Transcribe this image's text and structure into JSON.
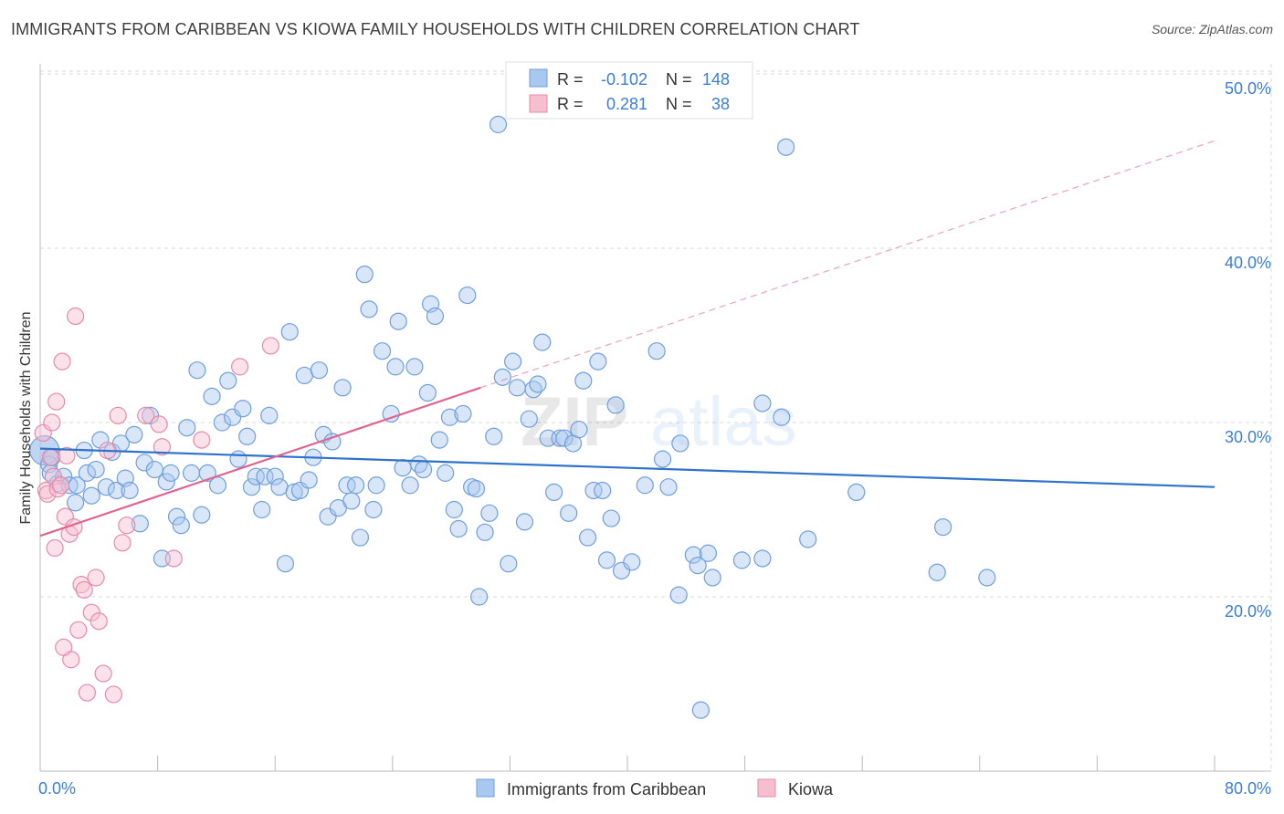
{
  "title": "IMMIGRANTS FROM CARIBBEAN VS KIOWA FAMILY HOUSEHOLDS WITH CHILDREN CORRELATION CHART",
  "source": "Source: ZipAtlas.com",
  "watermark": {
    "zip": "ZIP",
    "atlas": "atlas"
  },
  "colors": {
    "blue_fill": "#a9c8ef",
    "blue_stroke": "#6f9fdb",
    "blue_line": "#2f72cc",
    "pink_fill": "#f6bfd0",
    "pink_stroke": "#e58aa8",
    "pink_line": "#e0648f",
    "label_blue": "#3b7dd8",
    "grid": "#d8d8d8"
  },
  "chart_data": {
    "type": "scatter",
    "xlabel": "",
    "ylabel": "Family Households with Children",
    "xlim": [
      0,
      80
    ],
    "ylim": [
      10,
      51.5
    ],
    "x_tick_labels": [
      "0.0%",
      "80.0%"
    ],
    "y_ticks": [
      20,
      30,
      40,
      50
    ],
    "y_tick_labels": [
      "20.0%",
      "30.0%",
      "40.0%",
      "50.0%"
    ],
    "legend_position": "top-center",
    "stats": [
      {
        "r_label": "R = ",
        "r_value": "-0.102",
        "n_label": "N = ",
        "n_value": "148"
      },
      {
        "r_label": "R = ",
        "r_value": "0.281",
        "n_label": "N = ",
        "n_value": "38"
      }
    ],
    "series": [
      {
        "name": "Immigrants from Caribbean",
        "color": "#a9c8ef",
        "trend": {
          "x": [
            0,
            80
          ],
          "y": [
            28.5,
            26.3
          ]
        },
        "points": [
          [
            0.3,
            28.4
          ],
          [
            0.6,
            27.6
          ],
          [
            0.7,
            27.1
          ],
          [
            0.8,
            28.0
          ],
          [
            1.2,
            26.5
          ],
          [
            1.6,
            26.9
          ],
          [
            2.0,
            26.4
          ],
          [
            2.4,
            25.4
          ],
          [
            2.5,
            26.4
          ],
          [
            3.0,
            28.4
          ],
          [
            3.2,
            27.1
          ],
          [
            3.5,
            25.8
          ],
          [
            3.8,
            27.3
          ],
          [
            4.1,
            29.0
          ],
          [
            4.5,
            26.3
          ],
          [
            4.9,
            28.3
          ],
          [
            5.2,
            26.1
          ],
          [
            5.5,
            28.8
          ],
          [
            5.8,
            26.8
          ],
          [
            6.1,
            26.1
          ],
          [
            6.4,
            29.3
          ],
          [
            6.8,
            24.2
          ],
          [
            7.1,
            27.7
          ],
          [
            7.5,
            30.4
          ],
          [
            7.8,
            27.3
          ],
          [
            8.3,
            22.2
          ],
          [
            8.6,
            26.6
          ],
          [
            8.9,
            27.1
          ],
          [
            9.3,
            24.6
          ],
          [
            9.6,
            24.1
          ],
          [
            10.0,
            29.7
          ],
          [
            10.3,
            27.1
          ],
          [
            10.7,
            33.0
          ],
          [
            11.0,
            24.7
          ],
          [
            11.4,
            27.1
          ],
          [
            11.7,
            31.5
          ],
          [
            12.1,
            26.4
          ],
          [
            12.4,
            30.0
          ],
          [
            12.8,
            32.4
          ],
          [
            13.1,
            30.3
          ],
          [
            13.5,
            27.9
          ],
          [
            13.8,
            30.8
          ],
          [
            14.1,
            29.2
          ],
          [
            14.4,
            26.3
          ],
          [
            14.7,
            26.9
          ],
          [
            15.1,
            25.0
          ],
          [
            15.3,
            26.9
          ],
          [
            15.6,
            30.4
          ],
          [
            16.0,
            26.9
          ],
          [
            16.3,
            26.3
          ],
          [
            16.7,
            21.9
          ],
          [
            17.0,
            35.2
          ],
          [
            17.3,
            26.0
          ],
          [
            17.7,
            26.1
          ],
          [
            18.0,
            32.7
          ],
          [
            18.3,
            26.7
          ],
          [
            18.6,
            28.0
          ],
          [
            19.0,
            33.0
          ],
          [
            19.3,
            29.3
          ],
          [
            19.6,
            24.6
          ],
          [
            19.9,
            28.9
          ],
          [
            20.3,
            25.1
          ],
          [
            20.6,
            32.0
          ],
          [
            20.9,
            26.4
          ],
          [
            21.2,
            25.5
          ],
          [
            21.5,
            26.4
          ],
          [
            21.8,
            23.4
          ],
          [
            22.1,
            38.5
          ],
          [
            22.4,
            36.5
          ],
          [
            22.7,
            25.0
          ],
          [
            22.9,
            26.4
          ],
          [
            23.3,
            34.1
          ],
          [
            23.9,
            30.5
          ],
          [
            24.2,
            33.2
          ],
          [
            24.4,
            35.8
          ],
          [
            24.7,
            27.4
          ],
          [
            25.2,
            26.4
          ],
          [
            25.5,
            33.2
          ],
          [
            25.8,
            27.6
          ],
          [
            26.1,
            27.3
          ],
          [
            26.4,
            31.7
          ],
          [
            26.6,
            36.8
          ],
          [
            26.9,
            36.1
          ],
          [
            27.2,
            29.0
          ],
          [
            27.6,
            27.1
          ],
          [
            27.9,
            30.3
          ],
          [
            28.2,
            25.0
          ],
          [
            28.5,
            23.9
          ],
          [
            28.8,
            30.5
          ],
          [
            29.1,
            37.3
          ],
          [
            29.4,
            26.3
          ],
          [
            29.7,
            26.2
          ],
          [
            29.9,
            20.0
          ],
          [
            30.3,
            23.7
          ],
          [
            30.6,
            24.8
          ],
          [
            30.9,
            29.2
          ],
          [
            31.2,
            47.1
          ],
          [
            31.5,
            32.6
          ],
          [
            31.9,
            21.9
          ],
          [
            32.2,
            33.5
          ],
          [
            32.5,
            32.0
          ],
          [
            33.0,
            24.3
          ],
          [
            33.3,
            30.2
          ],
          [
            33.6,
            31.9
          ],
          [
            33.9,
            32.2
          ],
          [
            34.2,
            34.6
          ],
          [
            34.6,
            29.1
          ],
          [
            35.0,
            26.0
          ],
          [
            35.4,
            29.1
          ],
          [
            35.7,
            29.1
          ],
          [
            36.0,
            24.8
          ],
          [
            36.3,
            28.8
          ],
          [
            36.7,
            29.6
          ],
          [
            37.0,
            32.4
          ],
          [
            37.3,
            23.4
          ],
          [
            37.7,
            26.1
          ],
          [
            38.0,
            33.5
          ],
          [
            38.3,
            26.1
          ],
          [
            38.6,
            22.1
          ],
          [
            38.9,
            24.5
          ],
          [
            39.2,
            31.0
          ],
          [
            39.6,
            21.5
          ],
          [
            40.3,
            22.0
          ],
          [
            41.2,
            26.4
          ],
          [
            42.0,
            34.1
          ],
          [
            42.4,
            27.9
          ],
          [
            42.8,
            26.3
          ],
          [
            43.5,
            20.1
          ],
          [
            43.6,
            28.8
          ],
          [
            44.5,
            22.4
          ],
          [
            44.8,
            21.8
          ],
          [
            45.5,
            22.5
          ],
          [
            45.8,
            21.1
          ],
          [
            47.8,
            22.1
          ],
          [
            49.2,
            22.2
          ],
          [
            49.2,
            31.1
          ],
          [
            50.5,
            30.3
          ],
          [
            50.8,
            45.8
          ],
          [
            52.3,
            23.3
          ],
          [
            55.6,
            26.0
          ],
          [
            61.1,
            21.4
          ],
          [
            61.5,
            24.0
          ],
          [
            64.5,
            21.1
          ],
          [
            45.0,
            13.5
          ]
        ]
      },
      {
        "name": "Kiowa",
        "color": "#f6bfd0",
        "trend": {
          "x": [
            0,
            30
          ],
          "y": [
            23.5,
            32.0
          ]
        },
        "points": [
          [
            0.2,
            29.4
          ],
          [
            0.4,
            26.1
          ],
          [
            0.5,
            25.9
          ],
          [
            0.7,
            28.0
          ],
          [
            0.8,
            30.0
          ],
          [
            0.9,
            26.9
          ],
          [
            1.0,
            22.8
          ],
          [
            1.1,
            31.2
          ],
          [
            1.2,
            26.2
          ],
          [
            1.4,
            26.4
          ],
          [
            1.5,
            33.5
          ],
          [
            1.7,
            24.6
          ],
          [
            1.8,
            28.1
          ],
          [
            2.0,
            23.6
          ],
          [
            2.1,
            16.4
          ],
          [
            2.3,
            24.0
          ],
          [
            2.4,
            36.1
          ],
          [
            2.6,
            18.1
          ],
          [
            2.8,
            20.7
          ],
          [
            3.0,
            20.4
          ],
          [
            3.2,
            14.5
          ],
          [
            3.5,
            19.1
          ],
          [
            3.8,
            21.1
          ],
          [
            4.0,
            18.6
          ],
          [
            4.3,
            15.6
          ],
          [
            4.6,
            28.4
          ],
          [
            5.0,
            14.4
          ],
          [
            5.3,
            30.4
          ],
          [
            5.6,
            23.1
          ],
          [
            5.9,
            24.1
          ],
          [
            7.2,
            30.4
          ],
          [
            8.1,
            29.9
          ],
          [
            8.3,
            28.6
          ],
          [
            9.1,
            22.2
          ],
          [
            11.0,
            29.0
          ],
          [
            13.6,
            33.2
          ],
          [
            15.7,
            34.4
          ],
          [
            1.6,
            17.1
          ]
        ]
      }
    ]
  }
}
